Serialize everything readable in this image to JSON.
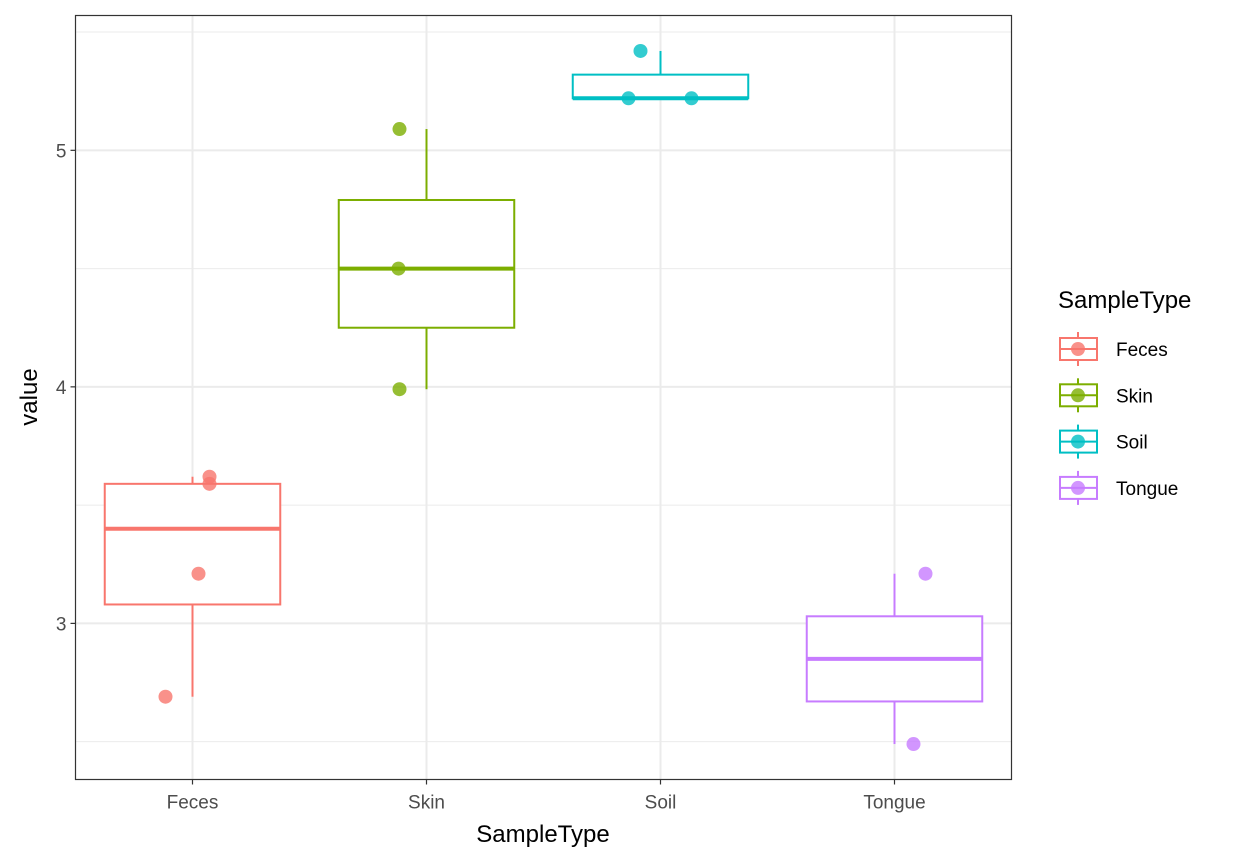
{
  "chart_data": {
    "type": "boxplot",
    "xlabel": "SampleType",
    "ylabel": "value",
    "categories": [
      "Feces",
      "Skin",
      "Soil",
      "Tongue"
    ],
    "ylim": [
      2.34,
      5.57
    ],
    "yticks": [
      3,
      4,
      5
    ],
    "grid": true,
    "legend": {
      "title": "SampleType",
      "position": "right",
      "entries": [
        "Feces",
        "Skin",
        "Soil",
        "Tongue"
      ]
    },
    "colors": {
      "Feces": "#F8766D",
      "Skin": "#7CAE00",
      "Soil": "#00BFC4",
      "Tongue": "#C77CFF"
    },
    "boxes": [
      {
        "category": "Feces",
        "whisker_low": 2.69,
        "q1": 3.08,
        "median": 3.4,
        "q3": 3.59,
        "whisker_high": 3.62
      },
      {
        "category": "Skin",
        "whisker_low": 3.99,
        "q1": 4.25,
        "median": 4.5,
        "q3": 4.79,
        "whisker_high": 5.09
      },
      {
        "category": "Soil",
        "whisker_low": 5.22,
        "q1": 5.22,
        "median": 5.22,
        "q3": 5.32,
        "whisker_high": 5.42
      },
      {
        "category": "Tongue",
        "whisker_low": 2.49,
        "q1": 2.67,
        "median": 2.85,
        "q3": 3.03,
        "whisker_high": 3.21
      }
    ],
    "points": [
      {
        "category": "Feces",
        "values": [
          3.62,
          3.59,
          3.21,
          2.69
        ]
      },
      {
        "category": "Skin",
        "values": [
          5.09,
          4.5,
          3.99
        ]
      },
      {
        "category": "Soil",
        "values": [
          5.42,
          5.22,
          5.22
        ]
      },
      {
        "category": "Tongue",
        "values": [
          3.21,
          2.49
        ]
      }
    ]
  }
}
